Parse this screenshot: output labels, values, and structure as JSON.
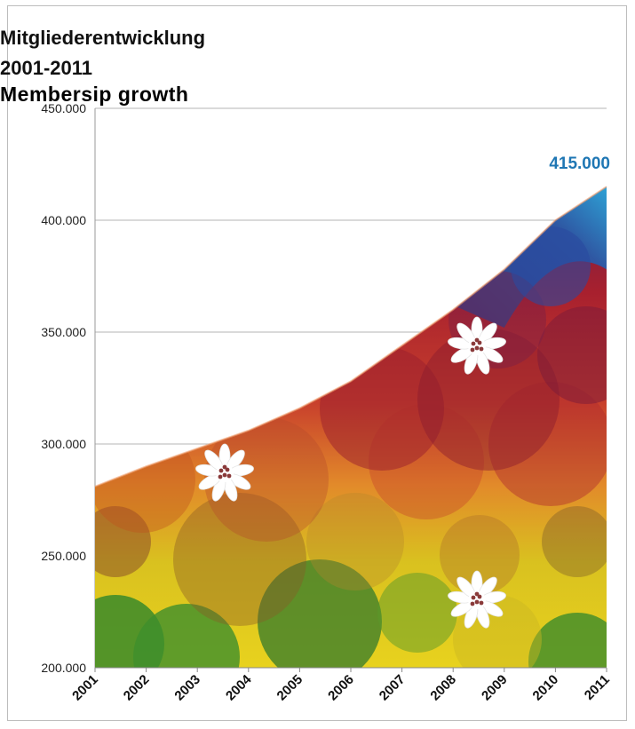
{
  "chart_data": {
    "type": "area",
    "title": "Mitgliederentwicklung",
    "subtitle": "2001-2011",
    "title_en": "Membersip growth",
    "x": [
      "2001",
      "2002",
      "2003",
      "2004",
      "2005",
      "2006",
      "2007",
      "2008",
      "2009",
      "2010",
      "2011"
    ],
    "series": [
      {
        "values": [
          281000,
          290000,
          298000,
          306000,
          316000,
          328000,
          344000,
          360000,
          378000,
          400000,
          415000
        ]
      }
    ],
    "y_ticks": [
      "200.000",
      "250.000",
      "300.000",
      "350.000",
      "400.000",
      "450.000"
    ],
    "ylim": [
      200000,
      450000
    ],
    "data_label": {
      "index": 10,
      "text": "415.000"
    },
    "gridlines": true,
    "legend": "none",
    "colors": {
      "bottom": "#e8d21e",
      "lower": "#c8b92a",
      "middle": "#e07a2a",
      "upper": "#b8262c",
      "top": "#2a4f9a",
      "edge": "#2aa0d8",
      "label": "#1f77b4"
    }
  }
}
